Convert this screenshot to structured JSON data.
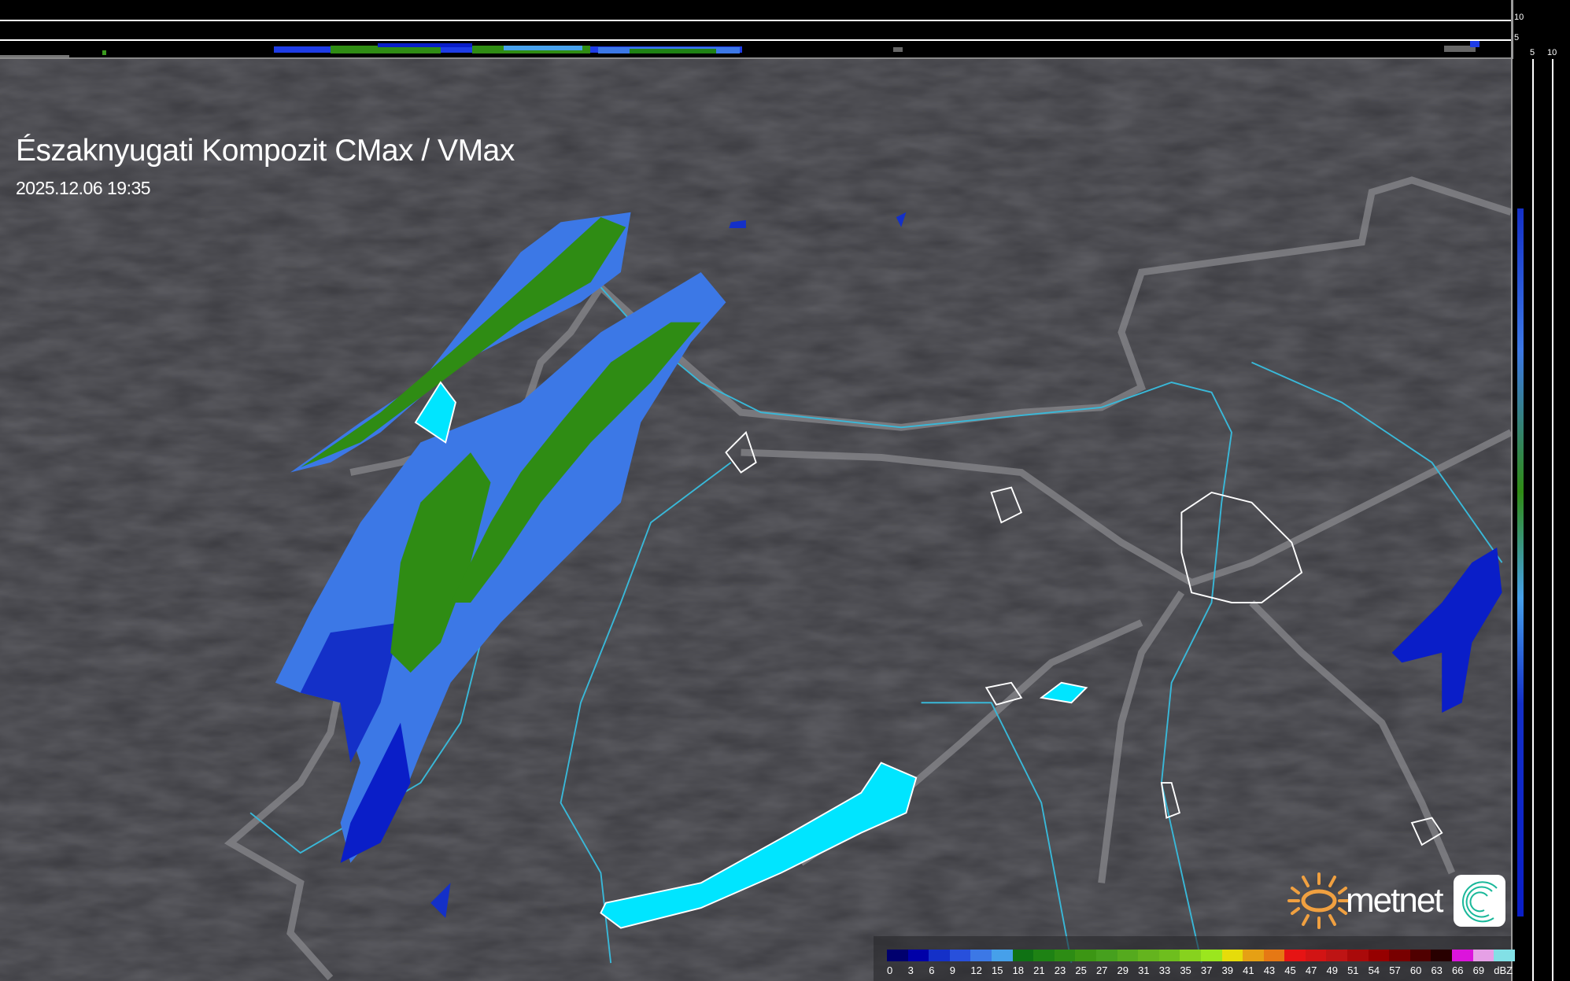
{
  "title": "Északnyugati Kompozit CMax / VMax",
  "timestamp": "2025.12.06 19:35",
  "profile_axis": {
    "top_ticks": [
      "10",
      "5"
    ],
    "right_ticks": [
      "5",
      "10"
    ]
  },
  "logo": {
    "brand": "metnet"
  },
  "legend": {
    "unit": "dBZ",
    "labels": [
      "0",
      "3",
      "6",
      "9",
      "12",
      "15",
      "18",
      "21",
      "23",
      "25",
      "27",
      "29",
      "31",
      "33",
      "35",
      "37",
      "39",
      "41",
      "43",
      "45",
      "47",
      "49",
      "51",
      "54",
      "57",
      "60",
      "63",
      "66",
      "69"
    ],
    "colors": [
      "#00006e",
      "#0000a8",
      "#1430c8",
      "#2850dc",
      "#3c78e6",
      "#46a0ea",
      "#0f7214",
      "#1e8214",
      "#2d8c14",
      "#3c9614",
      "#46a01e",
      "#55aa1e",
      "#64b41e",
      "#6ebe1e",
      "#87d21e",
      "#9be61e",
      "#e6dc0a",
      "#e6a014",
      "#e67814",
      "#e61414",
      "#d21414",
      "#be1414",
      "#aa0a0a",
      "#960000",
      "#780000",
      "#500000",
      "#280000",
      "#dc14dc",
      "#e6a0e6",
      "#82e0e6"
    ]
  },
  "colors": {
    "water": "#00e5ff",
    "rivers": "#39b8d8",
    "borders": "#8c8c90",
    "background": "#3b3b40"
  }
}
